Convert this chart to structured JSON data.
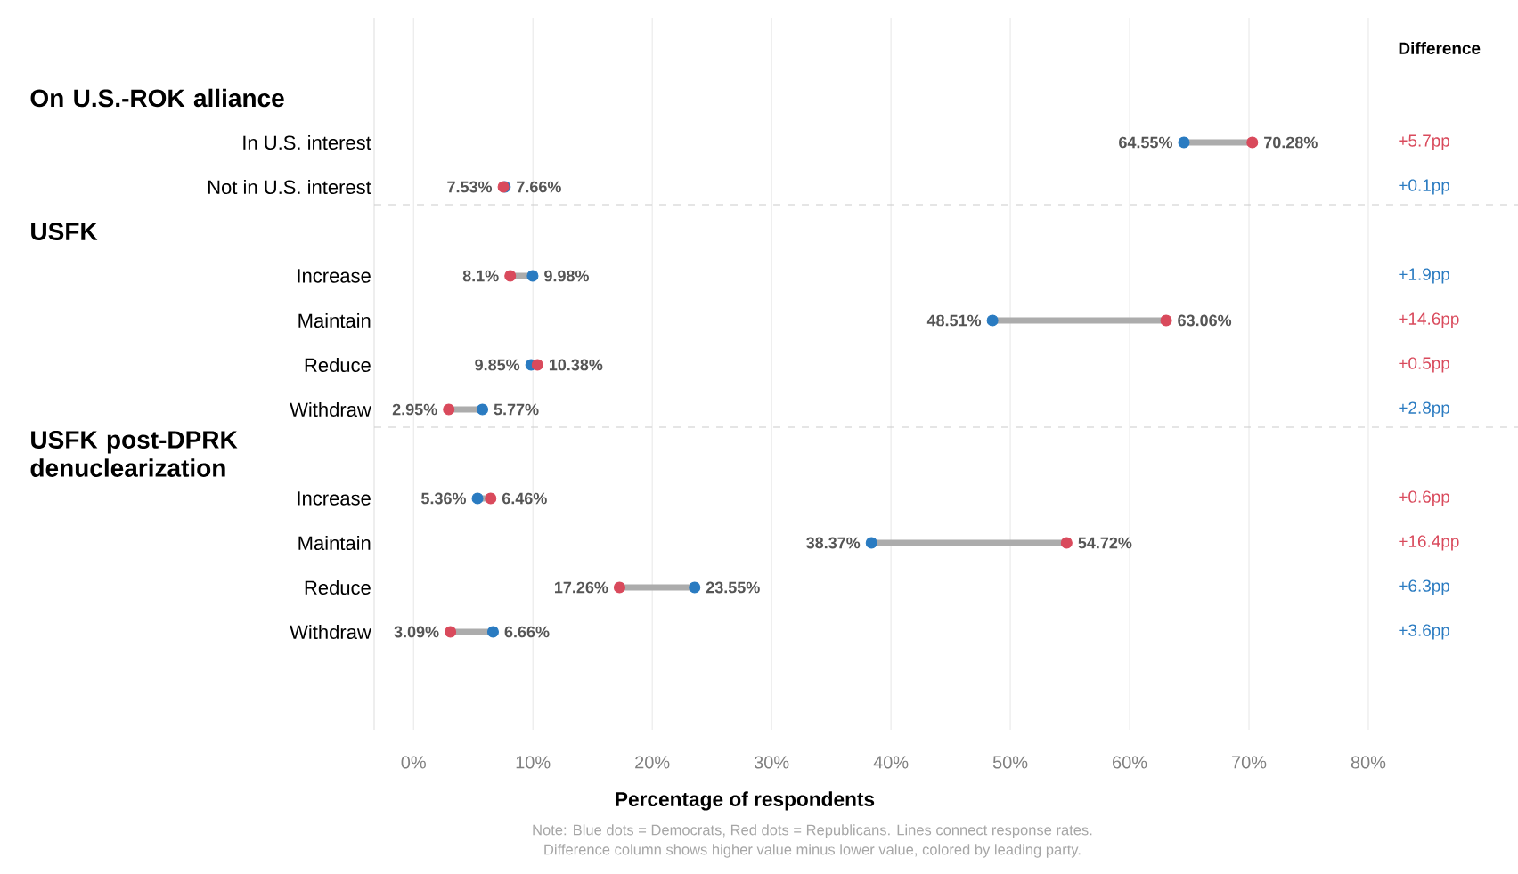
{
  "chart_data": {
    "type": "scatter",
    "orientation": "horizontal",
    "marker": "circle",
    "grid": "x",
    "xlabel": "Percentage of respondents",
    "categories": [
      null,
      "In U.S. interest",
      "Not in U.S. interest",
      null,
      "Increase",
      "Maintain",
      "Reduce",
      "Withdraw",
      null,
      "Increase",
      "Maintain",
      "Reduce",
      "Withdraw"
    ],
    "series": [
      {
        "color": "#2a7bc1",
        "values": [
          null,
          64.55,
          7.66,
          null,
          9.98,
          48.51,
          9.85,
          5.77,
          null,
          5.36,
          38.37,
          23.55,
          6.66
        ],
        "value_labels": [
          null,
          "64.55%",
          "7.66%",
          null,
          "9.98%",
          "48.51%",
          "9.85%",
          "5.77%",
          null,
          "5.36%",
          "38.37%",
          "23.55%",
          "6.66%"
        ]
      },
      {
        "color": "#d94a5c",
        "values": [
          null,
          70.28,
          7.53,
          null,
          8.1,
          63.06,
          10.38,
          2.95,
          null,
          6.46,
          54.72,
          17.26,
          3.09
        ],
        "value_labels": [
          null,
          "70.28%",
          "7.53%",
          null,
          "8.1%",
          "63.06%",
          "10.38%",
          "2.95%",
          null,
          "6.46%",
          "54.72%",
          "17.26%",
          "3.09%"
        ]
      }
    ],
    "xlim": [
      -3.3,
      80
    ],
    "xticks": [
      {
        "value": 0,
        "label": "0%"
      },
      {
        "value": 10,
        "label": "10%"
      },
      {
        "value": 20,
        "label": "20%"
      },
      {
        "value": 30,
        "label": "30%"
      },
      {
        "value": 40,
        "label": "40%"
      },
      {
        "value": 50,
        "label": "50%"
      },
      {
        "value": 60,
        "label": "60%"
      },
      {
        "value": 70,
        "label": "70%"
      },
      {
        "value": 80,
        "label": "80%"
      }
    ],
    "annotations": [
      "On U.S.-ROK alliance",
      "USFK",
      "USFK post-DPRK denuclearization",
      "Difference",
      "+5.7pp",
      "+0.1pp",
      "+1.9pp",
      "+14.6pp",
      "+0.5pp",
      "+2.8pp",
      "+0.6pp",
      "+16.4pp",
      "+6.3pp",
      "+3.6pp",
      "Note: Blue dots = Democrats, Red dots = Republicans. Lines connect response rates.",
      "Difference column shows higher value minus lower value, colored by leading party."
    ]
  }
}
